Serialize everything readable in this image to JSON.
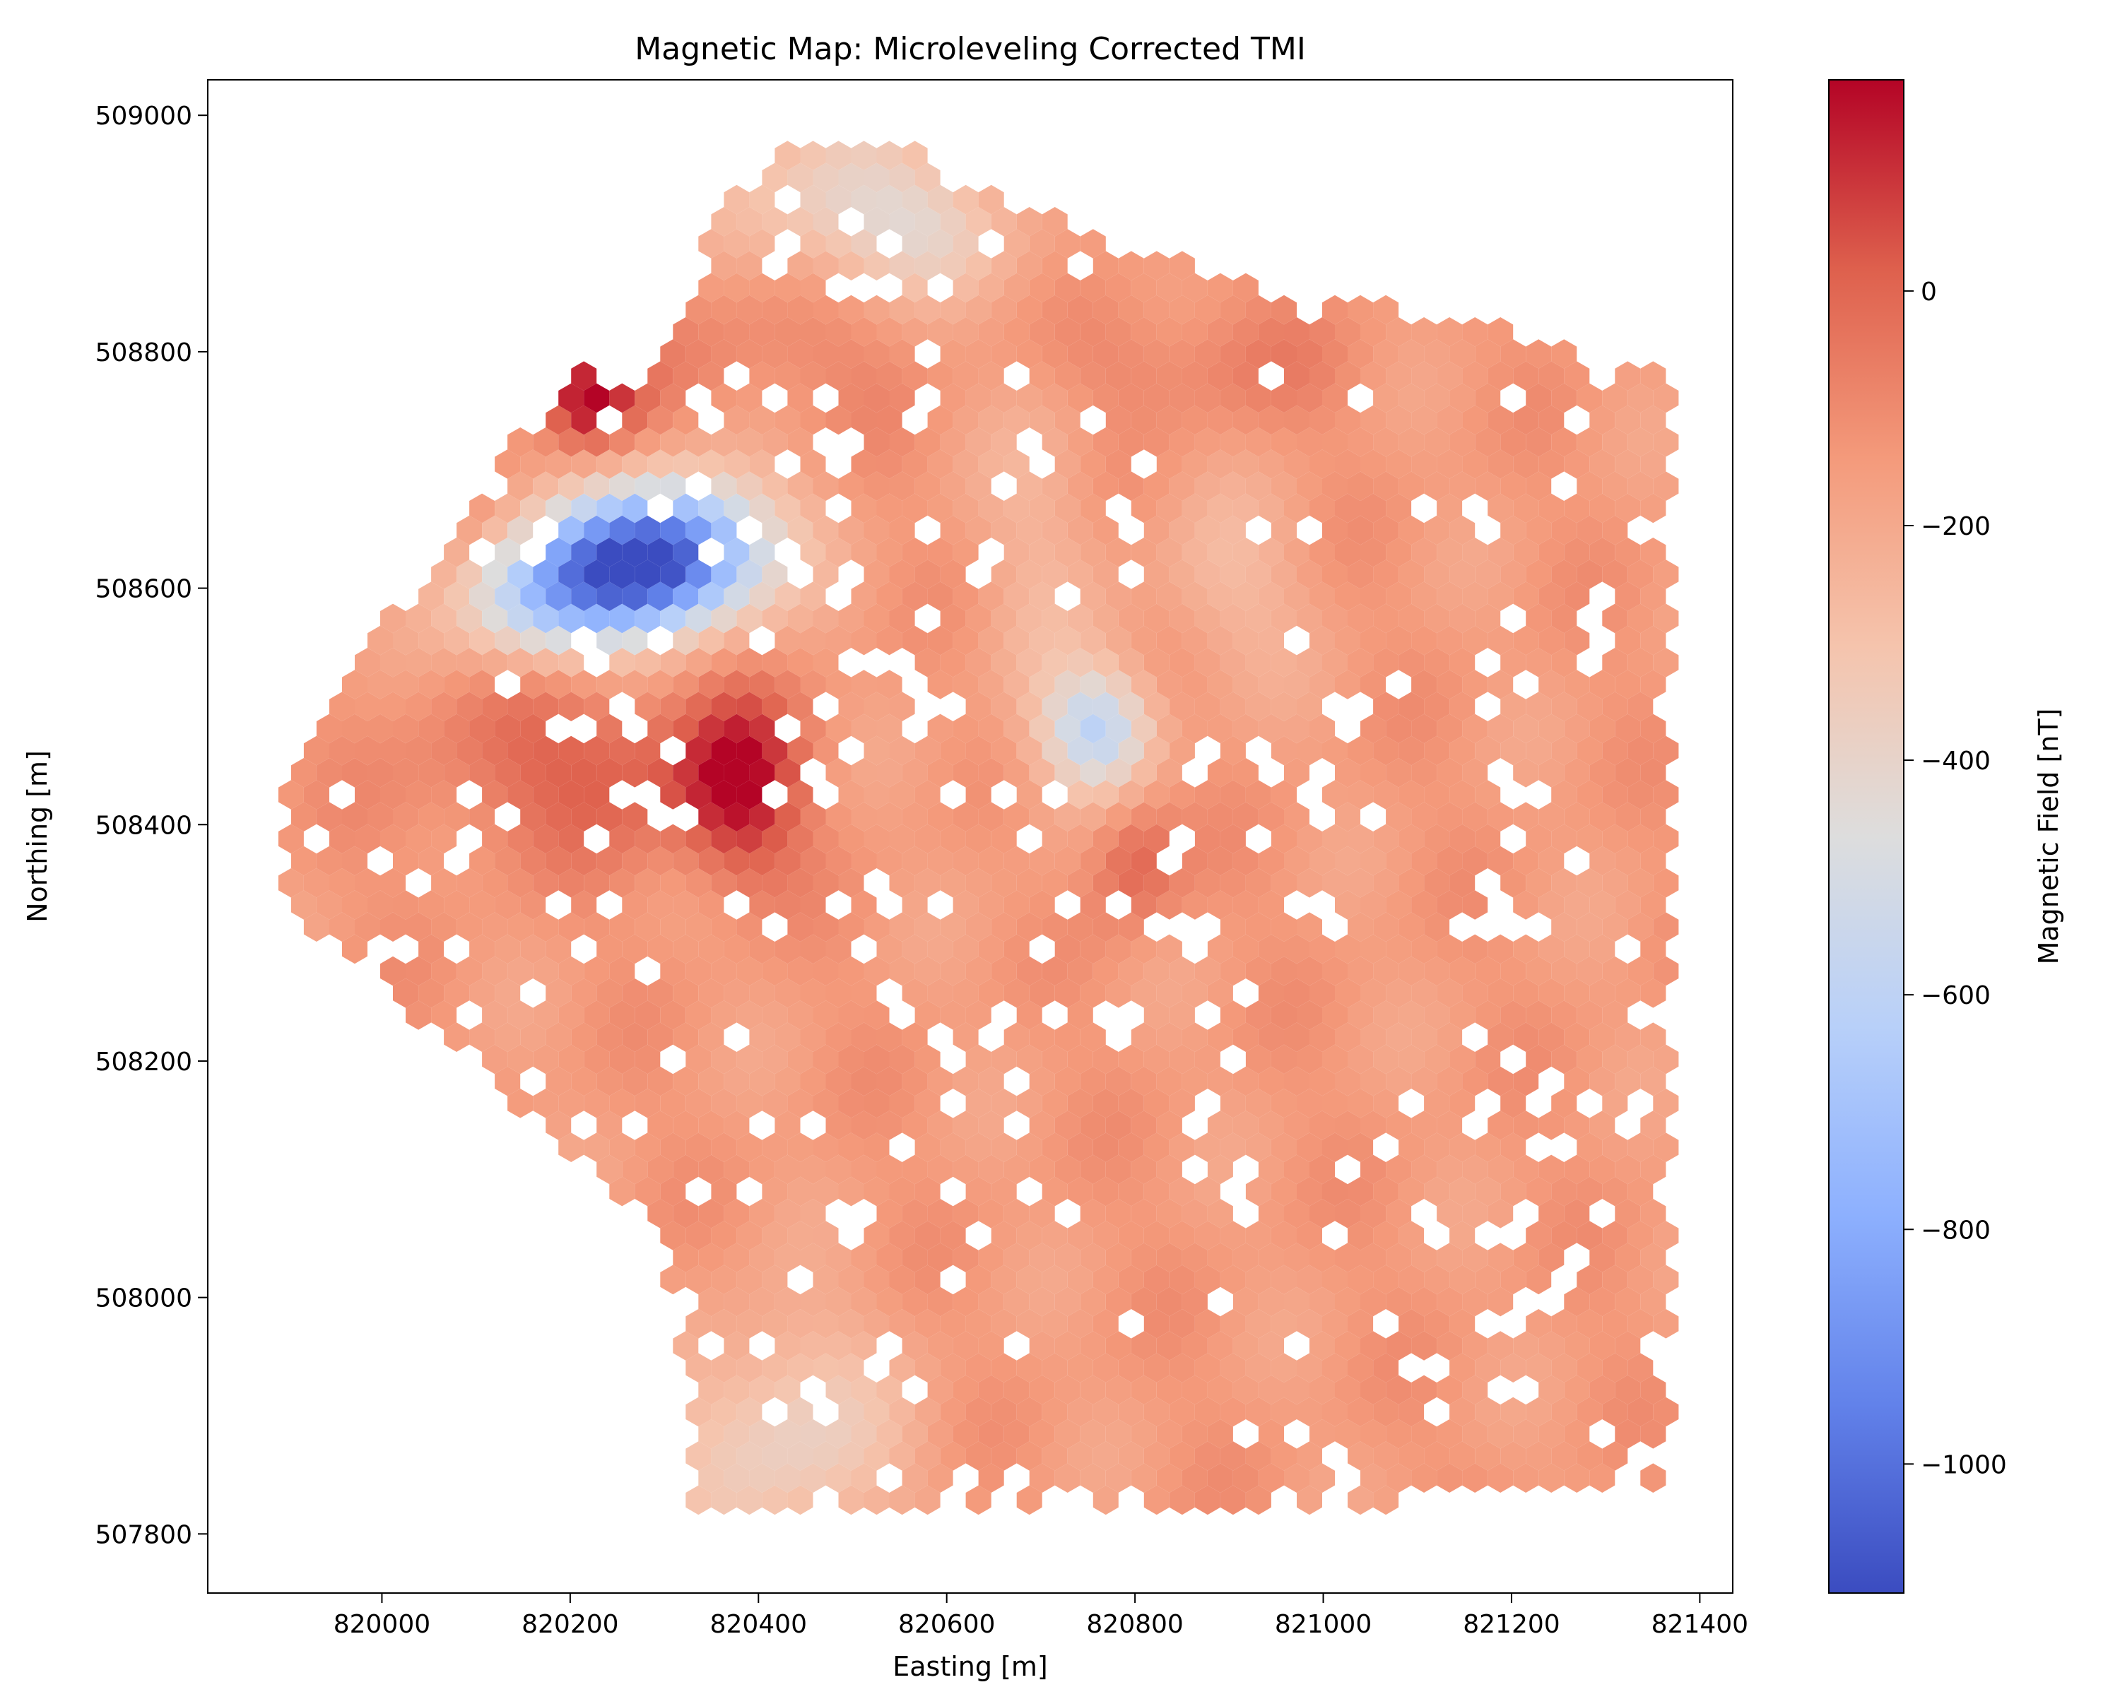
{
  "chart_data": {
    "type": "heatmap",
    "subtype": "hexbin",
    "title": "Magnetic Map: Microleveling Corrected TMI",
    "xlabel": "Easting [m]",
    "ylabel": "Northing [m]",
    "xlim": [
      819815,
      821435
    ],
    "ylim": [
      507750,
      509030
    ],
    "xticks": [
      820000,
      820200,
      820400,
      820600,
      820800,
      821000,
      821200,
      821400
    ],
    "yticks": [
      507800,
      508000,
      508200,
      508400,
      508600,
      508800,
      509000
    ],
    "colorbar": {
      "label": "Magnetic Field [nT]",
      "colormap": "coolwarm",
      "vmin": -1110,
      "vmax": 180,
      "ticks": [
        -1000,
        -800,
        -600,
        -400,
        -200,
        0
      ]
    },
    "grid": false,
    "background_field_nT": -150,
    "anomalies": [
      {
        "name": "Strong negative (blue) low",
        "x": 820260,
        "y": 508620,
        "value": -1000
      },
      {
        "name": "Negative low",
        "x": 820760,
        "y": 508480,
        "value": -520
      },
      {
        "name": "Positive high (NW edge)",
        "x": 820220,
        "y": 508760,
        "value": 170
      },
      {
        "name": "Positive high",
        "x": 820380,
        "y": 508430,
        "value": 160
      },
      {
        "name": "Positive high",
        "x": 820800,
        "y": 508370,
        "value": 30
      },
      {
        "name": "Low (south)",
        "x": 820400,
        "y": 507880,
        "value": -380
      },
      {
        "name": "Low (north)",
        "x": 820480,
        "y": 508930,
        "value": -360
      }
    ]
  }
}
